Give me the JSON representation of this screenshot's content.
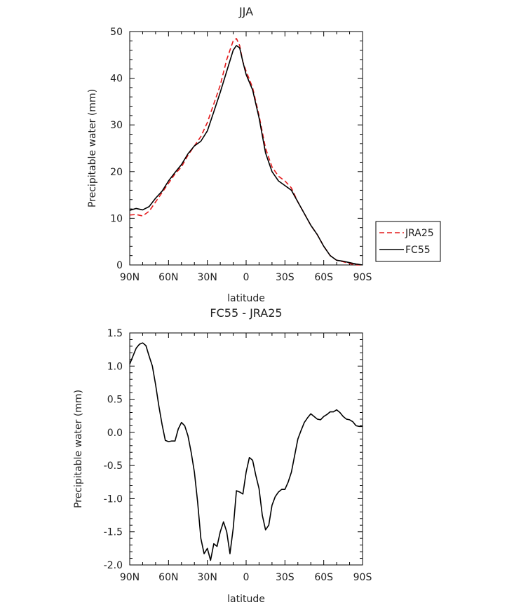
{
  "chart_data": [
    {
      "type": "line",
      "title": "JJA",
      "xlabel": "latitude",
      "ylabel": "Precipitable water (mm)",
      "xlim": [
        -90,
        90
      ],
      "ylim": [
        0,
        50
      ],
      "x_ticks": [
        -90,
        -60,
        -30,
        0,
        30,
        60,
        90
      ],
      "x_tick_labels": [
        "90N",
        "60N",
        "30N",
        "0",
        "30S",
        "60S",
        "90S"
      ],
      "y_ticks": [
        0,
        10,
        20,
        30,
        40,
        50
      ],
      "y_tick_labels": [
        "0",
        "10",
        "20",
        "30",
        "40",
        "50"
      ],
      "grid": false,
      "legend_position": "right",
      "series": [
        {
          "name": "JRA25",
          "color": "#e41a1c",
          "dash": "dashed",
          "x": [
            -90,
            -85,
            -80,
            -75,
            -70,
            -65,
            -60,
            -55,
            -50,
            -45,
            -40,
            -35,
            -30,
            -25,
            -20,
            -15,
            -10,
            -7.5,
            -5,
            -2.5,
            0,
            5,
            10,
            15,
            20,
            25,
            30,
            35,
            40,
            45,
            50,
            55,
            60,
            65,
            70,
            75,
            80,
            85,
            90
          ],
          "y": [
            10.7,
            10.8,
            10.5,
            11.5,
            13.5,
            15.5,
            17.5,
            19.5,
            21.0,
            23.5,
            25.5,
            27.5,
            30.5,
            34.5,
            38.5,
            44.0,
            48.0,
            48.5,
            47.0,
            43.5,
            41.5,
            38.0,
            32.0,
            25.0,
            21.0,
            19.0,
            18.0,
            16.5,
            13.5,
            11.0,
            8.5,
            6.5,
            4.0,
            2.0,
            1.0,
            0.7,
            0.3,
            0.0,
            0.0
          ]
        },
        {
          "name": "FC55",
          "color": "#000000",
          "dash": "solid",
          "x": [
            -90,
            -85,
            -80,
            -75,
            -70,
            -65,
            -60,
            -55,
            -50,
            -45,
            -40,
            -35,
            -30,
            -25,
            -20,
            -15,
            -10,
            -7.5,
            -5,
            -2.5,
            0,
            5,
            10,
            15,
            20,
            25,
            30,
            35,
            40,
            45,
            50,
            55,
            60,
            65,
            70,
            75,
            80,
            85,
            90
          ],
          "y": [
            11.7,
            12.1,
            11.8,
            12.5,
            14.3,
            15.8,
            18.0,
            19.8,
            21.5,
            23.8,
            25.5,
            26.5,
            28.7,
            32.8,
            37.0,
            41.5,
            46.0,
            47.0,
            46.5,
            43.5,
            40.8,
            37.5,
            31.5,
            24.0,
            20.0,
            18.0,
            17.0,
            16.0,
            13.5,
            11.0,
            8.5,
            6.5,
            4.0,
            2.0,
            1.0,
            0.8,
            0.5,
            0.2,
            0.0
          ]
        }
      ]
    },
    {
      "type": "line",
      "title": "FC55 - JRA25",
      "xlabel": "latitude",
      "ylabel": "Precipitable water (mm)",
      "xlim": [
        -90,
        90
      ],
      "ylim": [
        -2.0,
        1.5
      ],
      "x_ticks": [
        -90,
        -60,
        -30,
        0,
        30,
        60,
        90
      ],
      "x_tick_labels": [
        "90N",
        "60N",
        "30N",
        "0",
        "30S",
        "60S",
        "90S"
      ],
      "y_ticks": [
        -2.0,
        -1.5,
        -1.0,
        -0.5,
        0.0,
        0.5,
        1.0,
        1.5
      ],
      "y_tick_labels": [
        "-2.0",
        "-1.5",
        "-1.0",
        "-0.5",
        "0.0",
        "0.5",
        "1.0",
        "1.5"
      ],
      "grid": false,
      "series": [
        {
          "color": "#000000",
          "dash": "solid",
          "x": [
            -90,
            -87.5,
            -85,
            -82.5,
            -80,
            -77.5,
            -75,
            -72.5,
            -70,
            -67.5,
            -65,
            -62.5,
            -60,
            -57.5,
            -55,
            -52.5,
            -50,
            -47.5,
            -45,
            -42.5,
            -40,
            -37.5,
            -35,
            -32.5,
            -30,
            -27.5,
            -25,
            -22.5,
            -20,
            -17.5,
            -15,
            -12.5,
            -10,
            -7.5,
            -5,
            -2.5,
            0,
            2.5,
            5,
            7.5,
            10,
            12.5,
            15,
            17.5,
            20,
            22.5,
            25,
            27.5,
            30,
            32.5,
            35,
            37.5,
            40,
            42.5,
            45,
            47.5,
            50,
            52.5,
            55,
            57.5,
            60,
            62.5,
            65,
            67.5,
            70,
            72.5,
            75,
            77.5,
            80,
            82.5,
            85,
            87.5,
            90
          ],
          "y": [
            1.03,
            1.15,
            1.27,
            1.33,
            1.35,
            1.31,
            1.15,
            1.0,
            0.72,
            0.4,
            0.12,
            -0.12,
            -0.14,
            -0.13,
            -0.13,
            0.05,
            0.15,
            0.1,
            -0.05,
            -0.3,
            -0.6,
            -1.05,
            -1.6,
            -1.83,
            -1.75,
            -1.93,
            -1.68,
            -1.72,
            -1.5,
            -1.35,
            -1.5,
            -1.83,
            -1.45,
            -0.88,
            -0.9,
            -0.93,
            -0.6,
            -0.38,
            -0.42,
            -0.65,
            -0.85,
            -1.25,
            -1.47,
            -1.4,
            -1.1,
            -0.97,
            -0.9,
            -0.86,
            -0.86,
            -0.75,
            -0.6,
            -0.35,
            -0.1,
            0.03,
            0.15,
            0.22,
            0.28,
            0.24,
            0.2,
            0.19,
            0.24,
            0.27,
            0.31,
            0.31,
            0.34,
            0.3,
            0.24,
            0.2,
            0.19,
            0.16,
            0.1,
            0.09,
            0.09
          ]
        }
      ]
    }
  ]
}
